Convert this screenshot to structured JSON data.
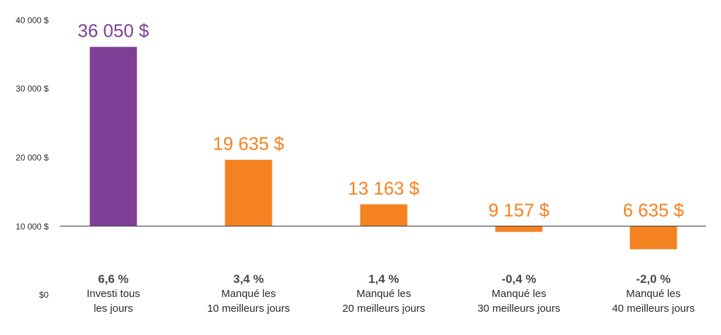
{
  "chart_data": {
    "type": "bar",
    "y_tick_labels": [
      "$0",
      "10 000 $",
      "20 000 $",
      "30 000 $",
      "40 000 $"
    ],
    "y_ticks": [
      0,
      10000,
      20000,
      30000,
      40000
    ],
    "ylim": [
      0,
      40000
    ],
    "baseline": 10000,
    "grid": false,
    "categories": [
      {
        "pct": "6,6 %",
        "line1": "Investi tous",
        "line2": "les jours"
      },
      {
        "pct": "3,4 %",
        "line1": "Manqué les",
        "line2": "10 meilleurs jours"
      },
      {
        "pct": "1,4 %",
        "line1": "Manqué les",
        "line2": "20 meilleurs jours"
      },
      {
        "pct": "-0,4 %",
        "line1": "Manqué les",
        "line2": "30 meilleurs jours"
      },
      {
        "pct": "-2,0 %",
        "line1": "Manqué les",
        "line2": "40 meilleurs jours"
      }
    ],
    "values": [
      36050,
      19635,
      13163,
      9157,
      6635
    ],
    "value_labels": [
      "36 050 $",
      "19 635 $",
      "13 163 $",
      "9 157 $",
      "6 635 $"
    ],
    "colors": [
      "#7e4096",
      "#f58220",
      "#f58220",
      "#f58220",
      "#f58220"
    ]
  }
}
